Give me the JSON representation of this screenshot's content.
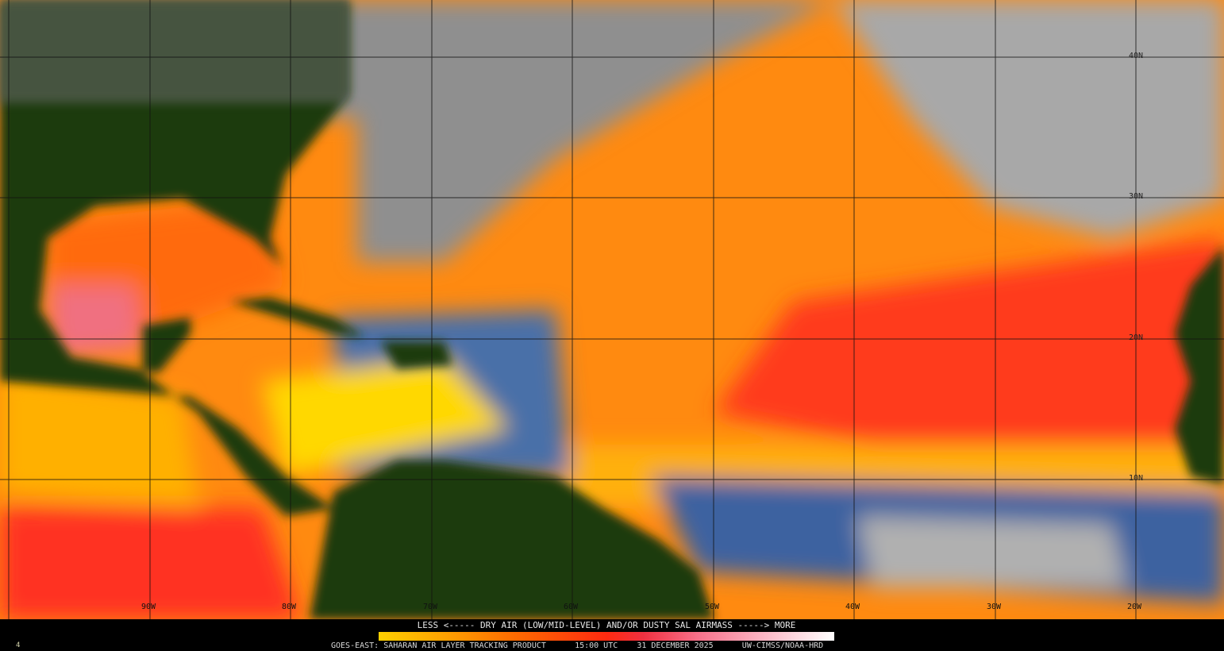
{
  "map": {
    "longitude_labels": [
      "90W",
      "80W",
      "70W",
      "60W",
      "50W",
      "40W",
      "30W",
      "20W"
    ],
    "latitude_labels": [
      "40N",
      "30N",
      "20N",
      "10N"
    ],
    "colors": {
      "land": "#1f3a10",
      "cloud": "#9a9a9a",
      "moist": "#4a6fa8",
      "dry_low": "#ffd400",
      "dry_mid": "#ff7a00",
      "dry_high": "#ff2a20",
      "dusty_max": "#f5a0b0"
    }
  },
  "legend": {
    "title": "LESS <----- DRY AIR (LOW/MID-LEVEL) AND/OR DUSTY SAL AIRMASS -----> MORE",
    "scale_colors": [
      "#ffd000",
      "#ff6a00",
      "#ff2a10",
      "#f7708a",
      "#ffffff"
    ]
  },
  "footer": {
    "product": "GOES-EAST: SAHARAN AIR LAYER TRACKING PRODUCT",
    "time": "15:00 UTC",
    "date": "31 DECEMBER 2025",
    "credit": "UW-CIMSS/NOAA-HRD",
    "corner_mark": "4"
  }
}
